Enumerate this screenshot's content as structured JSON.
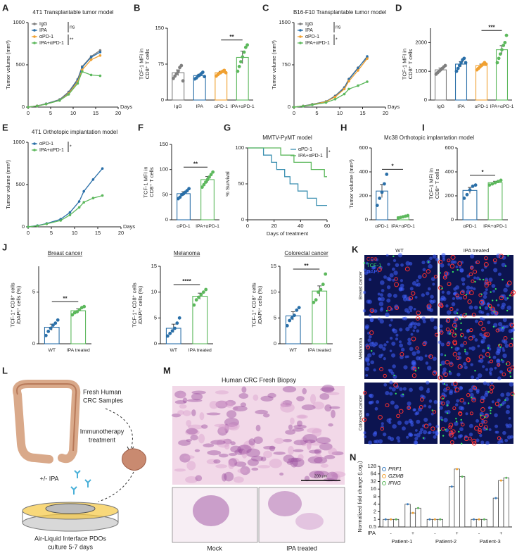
{
  "chart_data": [
    {
      "type": "line",
      "panel": "A",
      "title": "4T1 Transplantable tumor model",
      "y_label": "Tumor volume (mm³)",
      "x_label": "Days",
      "x": [
        0,
        2,
        4,
        7,
        9,
        11,
        12,
        14,
        16
      ],
      "xlim": [
        0,
        20
      ],
      "xticks": [
        0,
        5,
        10,
        15,
        20
      ],
      "ylim": [
        0,
        1000
      ],
      "yticks": [
        0,
        500,
        1000
      ],
      "markers": true,
      "legend": "upper left",
      "annotations": [
        "ns",
        "**"
      ],
      "series": [
        {
          "name": "IgG",
          "color": "#7f7f7f",
          "values": [
            0,
            15,
            40,
            90,
            180,
            330,
            480,
            600,
            670
          ]
        },
        {
          "name": "IPA",
          "color": "#2a6fa8",
          "values": [
            0,
            14,
            38,
            85,
            170,
            320,
            470,
            590,
            650
          ]
        },
        {
          "name": "αPD-1",
          "color": "#f0a030",
          "values": [
            0,
            13,
            36,
            80,
            160,
            300,
            440,
            560,
            610
          ]
        },
        {
          "name": "IPA+αPD-1",
          "color": "#5cb85c",
          "values": [
            0,
            12,
            35,
            78,
            150,
            280,
            420,
            380,
            370
          ]
        }
      ]
    },
    {
      "type": "bar",
      "panel": "B",
      "y_label": [
        "TCF-1 MFI in",
        "CD8⁺ T cells"
      ],
      "categories": [
        "IgG",
        "IPA",
        "αPD-1",
        "IPA+αPD-1"
      ],
      "colors": [
        "#7f7f7f",
        "#2a6fa8",
        "#f0a030",
        "#5cb85c"
      ],
      "values": [
        57,
        51,
        57,
        89
      ],
      "errors": [
        6,
        3,
        3,
        13
      ],
      "points": [
        [
          45,
          50,
          55,
          60,
          68,
          72,
          40
        ],
        [
          44,
          46,
          50,
          52,
          55,
          58,
          49
        ],
        [
          50,
          53,
          56,
          58,
          60,
          62,
          57
        ],
        [
          60,
          70,
          80,
          90,
          100,
          110,
          115
        ]
      ],
      "ylim": [
        0,
        150
      ],
      "yticks": [
        0,
        75,
        150
      ],
      "significance": "**"
    },
    {
      "type": "line",
      "panel": "C",
      "title": "B16-F10 Transplantable tumor model",
      "y_label": "Tumor volume (mm³)",
      "x_label": "Days",
      "x": [
        0,
        2,
        4,
        7,
        9,
        11,
        12,
        14,
        16
      ],
      "xlim": [
        0,
        20
      ],
      "xticks": [
        0,
        5,
        10,
        15,
        20
      ],
      "ylim": [
        0,
        1500
      ],
      "yticks": [
        0,
        750,
        1500
      ],
      "markers": true,
      "legend": "upper left",
      "annotations": [
        "ns",
        "*"
      ],
      "series": [
        {
          "name": "IgG",
          "color": "#7f7f7f",
          "values": [
            0,
            20,
            50,
            100,
            200,
            350,
            500,
            700,
            880
          ]
        },
        {
          "name": "IPA",
          "color": "#2a6fa8",
          "values": [
            0,
            20,
            50,
            100,
            190,
            340,
            490,
            690,
            900
          ]
        },
        {
          "name": "αPD-1",
          "color": "#f0a030",
          "values": [
            0,
            18,
            45,
            95,
            180,
            320,
            460,
            650,
            860
          ]
        },
        {
          "name": "IPA+αPD-1",
          "color": "#5cb85c",
          "values": [
            0,
            15,
            40,
            80,
            140,
            230,
            320,
            380,
            450
          ]
        }
      ]
    },
    {
      "type": "bar",
      "panel": "D",
      "y_label": [
        "TCF-1 MFI in",
        "CD8⁺ T cells"
      ],
      "categories": [
        "IgG",
        "IPA",
        "αPD-1",
        "IPA+αPD-1"
      ],
      "colors": [
        "#7f7f7f",
        "#2a6fa8",
        "#f0a030",
        "#5cb85c"
      ],
      "values": [
        1050,
        1250,
        1200,
        1750
      ],
      "errors": [
        60,
        90,
        50,
        140
      ],
      "points": [
        [
          900,
          950,
          1000,
          1050,
          1100,
          1150,
          1200
        ],
        [
          1000,
          1100,
          1200,
          1300,
          1400,
          1450,
          1300
        ],
        [
          1050,
          1100,
          1150,
          1200,
          1250,
          1300,
          1250
        ],
        [
          1300,
          1450,
          1600,
          1750,
          1900,
          2000,
          2250
        ]
      ],
      "ylim": [
        0,
        2500
      ],
      "yticks": [
        0,
        1000,
        2000
      ],
      "significance": "***"
    },
    {
      "type": "line",
      "panel": "E",
      "title": "4T1 Orthotopic implantation model",
      "y_label": "Tumor volume (mm³)",
      "x_label": "Days",
      "x": [
        0,
        2,
        4,
        7,
        9,
        11,
        12,
        14,
        16
      ],
      "xlim": [
        0,
        20
      ],
      "xticks": [
        0,
        5,
        10,
        15,
        20
      ],
      "ylim": [
        0,
        1000
      ],
      "yticks": [
        0,
        500,
        1000
      ],
      "markers": true,
      "legend": "upper left",
      "annotations": [
        "*"
      ],
      "series": [
        {
          "name": "αPD-1",
          "color": "#2a6fa8",
          "values": [
            0,
            15,
            40,
            90,
            170,
            300,
            420,
            560,
            690
          ]
        },
        {
          "name": "IPA+αPD-1",
          "color": "#5cb85c",
          "values": [
            0,
            12,
            35,
            75,
            140,
            230,
            290,
            340,
            370
          ]
        }
      ]
    },
    {
      "type": "bar",
      "panel": "F",
      "y_label": [
        "TCF-1 MFI in",
        "CD8⁺ T cells"
      ],
      "categories": [
        "αPD-1",
        "IPA+αPD-1"
      ],
      "colors": [
        "#2a6fa8",
        "#5cb85c"
      ],
      "values": [
        52,
        80
      ],
      "errors": [
        4,
        6
      ],
      "points": [
        [
          42,
          45,
          50,
          52,
          55,
          58,
          62
        ],
        [
          65,
          70,
          75,
          80,
          85,
          90,
          95
        ]
      ],
      "ylim": [
        0,
        150
      ],
      "yticks": [
        0,
        50,
        100,
        150
      ],
      "significance": "**"
    },
    {
      "type": "survival",
      "panel": "G",
      "title": "MMTV-PyMT model",
      "y_label": "% Survival",
      "x_label": "Days of treatment",
      "xlim": [
        0,
        60
      ],
      "xticks": [
        0,
        20,
        40,
        60
      ],
      "ylim": [
        0,
        100
      ],
      "yticks": [
        0,
        50,
        100
      ],
      "markers": false,
      "legend": "upper right",
      "annotations": [
        "*"
      ],
      "series": [
        {
          "name": "αPD-1",
          "color": "#3a8fb0",
          "x": [
            0,
            12,
            12,
            18,
            18,
            22,
            22,
            28,
            28,
            32,
            32,
            38,
            38,
            45,
            45,
            52,
            52,
            60
          ],
          "values": [
            100,
            100,
            90,
            90,
            80,
            80,
            70,
            70,
            60,
            60,
            50,
            50,
            40,
            40,
            30,
            30,
            20,
            20
          ]
        },
        {
          "name": "IPA+αPD-1",
          "color": "#5cb85c",
          "x": [
            0,
            25,
            25,
            35,
            35,
            48,
            48,
            58,
            58,
            60
          ],
          "values": [
            100,
            100,
            90,
            90,
            80,
            80,
            70,
            70,
            60,
            60
          ]
        }
      ]
    },
    {
      "type": "bar",
      "panel": "H",
      "title": "Mc38 Orthotopic implantation model",
      "y_label": "Tumor volume (mm³)",
      "categories": [
        "αPD-1",
        "IPA+αPD-1"
      ],
      "colors": [
        "#2a6fa8",
        "#5cb85c"
      ],
      "values": [
        240,
        25
      ],
      "errors": [
        55,
        5
      ],
      "points": [
        [
          120,
          180,
          230,
          300,
          380
        ],
        [
          15,
          20,
          25,
          30,
          35
        ]
      ],
      "ylim": [
        0,
        600
      ],
      "yticks": [
        0,
        200,
        400,
        600
      ],
      "significance": "*"
    },
    {
      "type": "bar",
      "panel": "I",
      "y_label": [
        "TCF-1 MFI in",
        "CD8⁺ T cells"
      ],
      "categories": [
        "αPD-1",
        "IPA+αPD-1"
      ],
      "colors": [
        "#2a6fa8",
        "#5cb85c"
      ],
      "values": [
        245,
        310
      ],
      "errors": [
        25,
        12
      ],
      "points": [
        [
          180,
          210,
          250,
          280,
          290
        ],
        [
          290,
          300,
          310,
          320,
          330
        ]
      ],
      "ylim": [
        0,
        600
      ],
      "yticks": [
        0,
        200,
        400,
        600
      ],
      "significance": "*"
    },
    {
      "type": "bar",
      "panel": "J",
      "title": "Breast cancer",
      "y_label": [
        "TCF-1⁺ CD8⁺ cells",
        "/DAPI⁺ cells (%)"
      ],
      "categories": [
        "WT",
        "IPA treated"
      ],
      "colors": [
        "#2a6fa8",
        "#5cb85c"
      ],
      "values": [
        1.6,
        3.2
      ],
      "errors": [
        0.3,
        0.2
      ],
      "points": [
        [
          0.8,
          1.2,
          1.5,
          1.8,
          2.0,
          2.3
        ],
        [
          2.8,
          3.0,
          3.1,
          3.3,
          3.5,
          3.6
        ]
      ],
      "ylim": [
        0,
        7.5
      ],
      "yticks": [
        0,
        5
      ],
      "significance": "**"
    },
    {
      "type": "bar",
      "title": "Melanoma",
      "y_label": [
        "TCF-1⁺ CD8⁺ cells",
        "/DAPI⁺ cells (%)"
      ],
      "categories": [
        "WT",
        "IPA treated"
      ],
      "colors": [
        "#2a6fa8",
        "#5cb85c"
      ],
      "values": [
        3,
        9.2
      ],
      "errors": [
        0.8,
        0.6
      ],
      "points": [
        [
          1.5,
          2,
          2.5,
          3,
          4,
          5
        ],
        [
          7.5,
          8.5,
          9,
          9.5,
          10,
          10.5
        ]
      ],
      "ylim": [
        0,
        15
      ],
      "yticks": [
        0,
        5,
        10,
        15
      ],
      "significance": "****"
    },
    {
      "type": "bar",
      "title": "Colorectal cancer",
      "y_label": [
        "TCF-1⁺ CD8⁺ cells",
        "/DAPI⁺ cells (%)"
      ],
      "categories": [
        "WT",
        "IPA treated"
      ],
      "colors": [
        "#2a6fa8",
        "#5cb85c"
      ],
      "values": [
        5.4,
        10.2
      ],
      "errors": [
        0.8,
        1
      ],
      "points": [
        [
          3.5,
          4.5,
          5,
          5.5,
          6.5,
          7
        ],
        [
          8,
          8.5,
          10,
          10.5,
          11.5,
          13.5
        ]
      ],
      "ylim": [
        0,
        15
      ],
      "yticks": [
        0,
        5,
        10,
        15
      ],
      "significance": "**"
    },
    {
      "type": "bar",
      "panel": "N",
      "y_label": "Normalized fold change (Log₂)",
      "log_scale": true,
      "legend": "upper left",
      "categories": [
        "-",
        "+",
        "-",
        "+",
        "-",
        "+"
      ],
      "groups": [
        "Patient-1",
        "Patient-2",
        "Patient-3"
      ],
      "row_label": "IPA",
      "series": [
        {
          "name": "PRF1",
          "color": "#3a7dc0",
          "values": [
            1,
            4,
            1,
            20,
            1,
            7
          ]
        },
        {
          "name": "GZMB",
          "color": "#f0a030",
          "values": [
            1,
            1.8,
            1,
            100,
            1,
            35
          ]
        },
        {
          "name": "IFNG",
          "color": "#5cb85c",
          "values": [
            1,
            2.8,
            1,
            50,
            1,
            45
          ]
        }
      ],
      "ylim": [
        0.5,
        128
      ],
      "yticks": [
        0.5,
        1,
        2,
        4,
        8,
        16,
        32,
        64,
        128
      ]
    }
  ],
  "panel_k": {
    "letter": "K",
    "columns": [
      "WT",
      "IPA treated"
    ],
    "rows": [
      "Breast cancer",
      "Melanoma",
      "Colorectal cancer"
    ],
    "channels": [
      "CD8",
      "TCF-1",
      "DAPI"
    ],
    "channel_colors": [
      "#ff3030",
      "#30e060",
      "#4060ff"
    ]
  },
  "panel_l": {
    "letter": "L",
    "samples": [
      "Fresh Human",
      "CRC Samples"
    ],
    "treatment": [
      "Immunotherapy",
      "treatment"
    ],
    "drug": "+/- IPA",
    "culture": [
      "Air-Liquid Interface PDOs",
      "culture 5-7 days"
    ]
  },
  "panel_m": {
    "letter": "M",
    "title": "Human CRC Fresh Biopsy",
    "scale_bar": "200 μm",
    "labels": [
      "Mock",
      "IPA treated"
    ]
  }
}
